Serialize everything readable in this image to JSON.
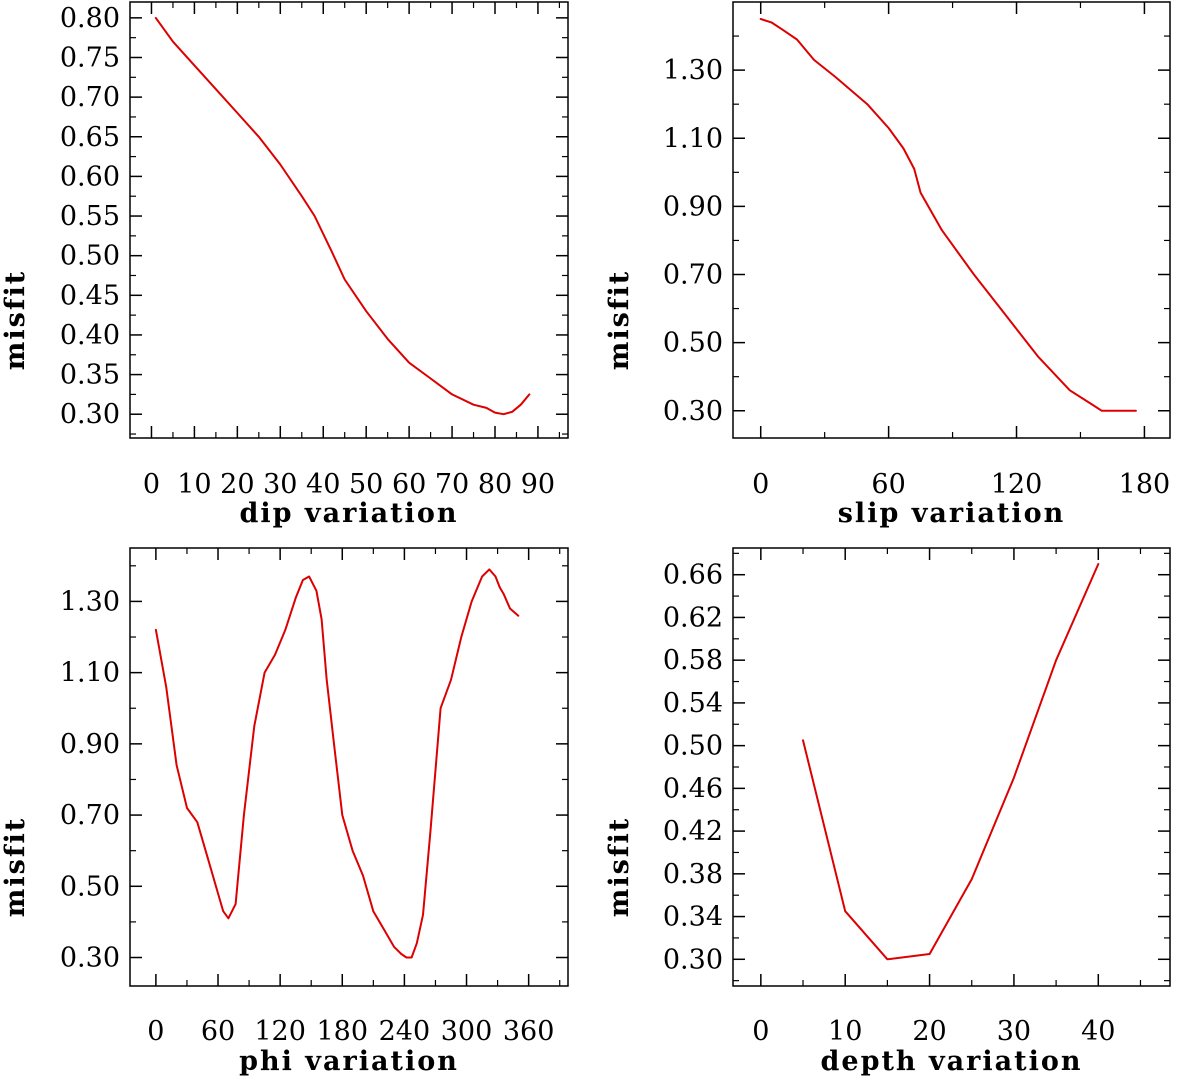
{
  "chart_data": [
    {
      "type": "line",
      "xlabel": "dip    variation",
      "ylabel": "misfit",
      "xlim": [
        -5,
        97
      ],
      "ylim": [
        0.27,
        0.82
      ],
      "xticks": [
        0,
        10,
        20,
        30,
        40,
        50,
        60,
        70,
        80,
        90
      ],
      "xtick_labels": [
        "0",
        "10",
        "20",
        "30",
        "40",
        "50",
        "60",
        "70",
        "80",
        "90"
      ],
      "yticks": [
        0.3,
        0.35,
        0.4,
        0.45,
        0.5,
        0.55,
        0.6,
        0.65,
        0.7,
        0.75,
        0.8
      ],
      "ytick_labels": [
        "0.30",
        "0.35",
        "0.40",
        "0.45",
        "0.50",
        "0.55",
        "0.60",
        "0.65",
        "0.70",
        "0.75",
        "0.80"
      ],
      "line_color": "#dd0000",
      "x": [
        1,
        5,
        10,
        15,
        20,
        25,
        30,
        35,
        38,
        42,
        45,
        50,
        55,
        60,
        65,
        70,
        75,
        78,
        80,
        82,
        84,
        86,
        88
      ],
      "y": [
        0.8,
        0.77,
        0.74,
        0.71,
        0.68,
        0.65,
        0.615,
        0.575,
        0.55,
        0.505,
        0.47,
        0.43,
        0.395,
        0.365,
        0.345,
        0.325,
        0.312,
        0.308,
        0.302,
        0.3,
        0.303,
        0.312,
        0.325
      ]
    },
    {
      "type": "line",
      "xlabel": "slip   variation",
      "ylabel": "misfit",
      "xlim": [
        -13,
        192
      ],
      "ylim": [
        0.22,
        1.5
      ],
      "xticks": [
        0,
        60,
        120,
        180
      ],
      "xtick_labels": [
        "0",
        "60",
        "120",
        "180"
      ],
      "yticks": [
        0.3,
        0.5,
        0.7,
        0.9,
        1.1,
        1.3
      ],
      "ytick_labels": [
        "0.30",
        "0.50",
        "0.70",
        "0.90",
        "1.10",
        "1.30"
      ],
      "line_color": "#dd0000",
      "x": [
        0,
        5,
        10,
        17,
        25,
        35,
        50,
        60,
        67,
        72,
        75,
        85,
        100,
        115,
        130,
        145,
        155,
        160,
        170,
        176
      ],
      "y": [
        1.45,
        1.44,
        1.42,
        1.39,
        1.33,
        1.28,
        1.2,
        1.13,
        1.07,
        1.01,
        0.94,
        0.83,
        0.7,
        0.58,
        0.46,
        0.36,
        0.32,
        0.3,
        0.3,
        0.3
      ]
    },
    {
      "type": "line",
      "xlabel": "phi    variation",
      "ylabel": "misfit",
      "xlim": [
        -25,
        398
      ],
      "ylim": [
        0.22,
        1.45
      ],
      "xticks": [
        0,
        60,
        120,
        180,
        240,
        300,
        360
      ],
      "xtick_labels": [
        "0",
        "60",
        "120",
        "180",
        "240",
        "300",
        "360"
      ],
      "yticks": [
        0.3,
        0.5,
        0.7,
        0.9,
        1.1,
        1.3
      ],
      "ytick_labels": [
        "0.30",
        "0.50",
        "0.70",
        "0.90",
        "1.10",
        "1.30"
      ],
      "line_color": "#dd0000",
      "x": [
        0,
        10,
        20,
        30,
        40,
        50,
        60,
        65,
        70,
        77,
        85,
        95,
        105,
        115,
        125,
        135,
        142,
        148,
        155,
        160,
        165,
        172,
        180,
        190,
        200,
        210,
        220,
        230,
        237,
        242,
        247,
        252,
        258,
        265,
        275,
        285,
        295,
        305,
        315,
        322,
        328,
        332,
        336,
        342,
        350
      ],
      "y": [
        1.22,
        1.06,
        0.84,
        0.72,
        0.68,
        0.58,
        0.48,
        0.43,
        0.41,
        0.45,
        0.7,
        0.95,
        1.1,
        1.15,
        1.22,
        1.31,
        1.36,
        1.37,
        1.33,
        1.25,
        1.08,
        0.9,
        0.7,
        0.6,
        0.53,
        0.43,
        0.38,
        0.33,
        0.31,
        0.3,
        0.3,
        0.34,
        0.42,
        0.65,
        1.0,
        1.08,
        1.2,
        1.3,
        1.37,
        1.39,
        1.37,
        1.34,
        1.32,
        1.28,
        1.26
      ]
    },
    {
      "type": "line",
      "xlabel": "depth  variation",
      "ylabel": "misfit",
      "xlim": [
        -3.3,
        48.5
      ],
      "ylim": [
        0.275,
        0.685
      ],
      "xticks": [
        0,
        10,
        20,
        30,
        40
      ],
      "xtick_labels": [
        "0",
        "10",
        "20",
        "30",
        "40"
      ],
      "yticks": [
        0.3,
        0.34,
        0.38,
        0.42,
        0.46,
        0.5,
        0.54,
        0.58,
        0.62,
        0.66
      ],
      "ytick_labels": [
        "0.30",
        "0.34",
        "0.38",
        "0.42",
        "0.46",
        "0.50",
        "0.54",
        "0.58",
        "0.62",
        "0.66"
      ],
      "line_color": "#dd0000",
      "x": [
        5,
        10,
        15,
        20,
        25,
        30,
        35,
        40
      ],
      "y": [
        0.505,
        0.345,
        0.3,
        0.305,
        0.375,
        0.47,
        0.58,
        0.67
      ]
    }
  ]
}
